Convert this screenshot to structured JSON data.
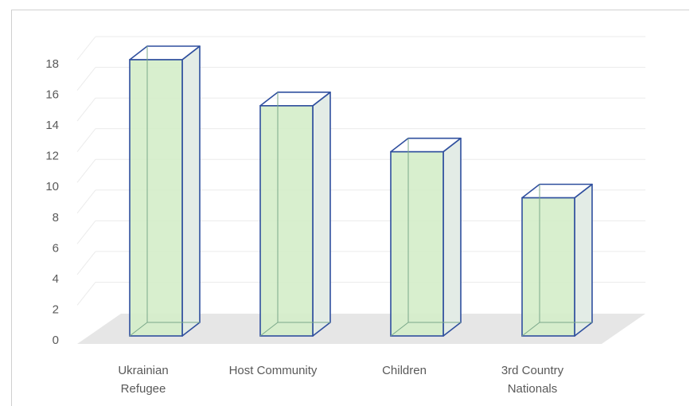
{
  "chart_data": {
    "type": "bar",
    "style": "3d-column",
    "categories": [
      [
        "Ukrainian",
        "Refugee"
      ],
      [
        "Host Community"
      ],
      [
        "Children"
      ],
      [
        "3rd Country",
        "Nationals"
      ]
    ],
    "values": [
      18,
      15,
      12,
      9
    ],
    "title": "",
    "xlabel": "",
    "ylabel": "",
    "ylim": [
      0,
      18
    ],
    "yticks": [
      "0",
      "2",
      "4",
      "6",
      "8",
      "10",
      "12",
      "14",
      "16",
      "18"
    ],
    "grid": true,
    "legend": "none",
    "colors": {
      "bar_fill": "#d4edc9",
      "bar_side": "#e3ece6",
      "bar_stroke": "#2f4f9e",
      "floor": "#e6e6e6",
      "grid": "#ebebeb",
      "text": "#595959"
    }
  }
}
